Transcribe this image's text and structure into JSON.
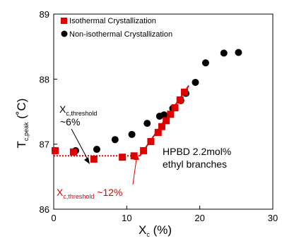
{
  "chart_data": {
    "type": "scatter",
    "xlabel": "X",
    "xlabel_sub": "c",
    "xlabel_unit": " (%)",
    "ylabel": "T",
    "ylabel_sub": "c,peak",
    "ylabel_unit": " (˚C)",
    "xlim": [
      0,
      30
    ],
    "ylim": [
      86,
      89
    ],
    "xticks": [
      "0",
      "10",
      "20",
      "30"
    ],
    "yticks": [
      "86",
      "87",
      "88",
      "89"
    ],
    "legend_position": "top-left",
    "series": [
      {
        "name": "Isothermal Crystallization",
        "marker": "square",
        "color": "#e00000",
        "points": [
          [
            0.2,
            86.9
          ],
          [
            2.7,
            86.88
          ],
          [
            5.5,
            86.77
          ],
          [
            9.4,
            86.8
          ],
          [
            11.0,
            86.82
          ],
          [
            12.3,
            86.9
          ],
          [
            13.3,
            87.04
          ],
          [
            14.3,
            87.18
          ],
          [
            14.8,
            87.27
          ],
          [
            15.4,
            87.36
          ],
          [
            16.0,
            87.46
          ],
          [
            16.6,
            87.56
          ],
          [
            17.3,
            87.68
          ],
          [
            17.9,
            87.8
          ]
        ]
      },
      {
        "name": "Non-isothermal Crystallization",
        "marker": "circle",
        "color": "#000000",
        "points": [
          [
            0.2,
            86.9
          ],
          [
            3.0,
            86.9
          ],
          [
            5.9,
            86.92
          ],
          [
            8.4,
            87.07
          ],
          [
            10.7,
            87.15
          ],
          [
            12.8,
            87.32
          ],
          [
            14.5,
            87.43
          ],
          [
            15.1,
            87.45
          ],
          [
            16.3,
            87.55
          ],
          [
            17.4,
            87.67
          ],
          [
            18.1,
            87.78
          ],
          [
            19.4,
            87.95
          ],
          [
            20.8,
            88.25
          ],
          [
            23.3,
            88.4
          ],
          [
            25.3,
            88.41
          ]
        ]
      }
    ],
    "fit_lines": [
      {
        "style": "dotted",
        "color": "#e00000",
        "points": [
          [
            0,
            86.82
          ],
          [
            11.8,
            86.82
          ]
        ]
      },
      {
        "style": "solid",
        "color": "#e00000",
        "points": [
          [
            11.8,
            86.82
          ],
          [
            18.5,
            87.9
          ]
        ]
      }
    ],
    "annotations": [
      {
        "text": "X",
        "sub": "c,threshold",
        "color": "#000000"
      },
      {
        "text": "~6%",
        "color": "#000000"
      },
      {
        "text": "X",
        "sub": "c,threshold",
        "suffix": " ~12%",
        "color": "#e00000"
      },
      {
        "text": "HPBD 2.2mol%",
        "color": "#000000"
      },
      {
        "text": "ethyl branches",
        "color": "#000000"
      }
    ]
  }
}
